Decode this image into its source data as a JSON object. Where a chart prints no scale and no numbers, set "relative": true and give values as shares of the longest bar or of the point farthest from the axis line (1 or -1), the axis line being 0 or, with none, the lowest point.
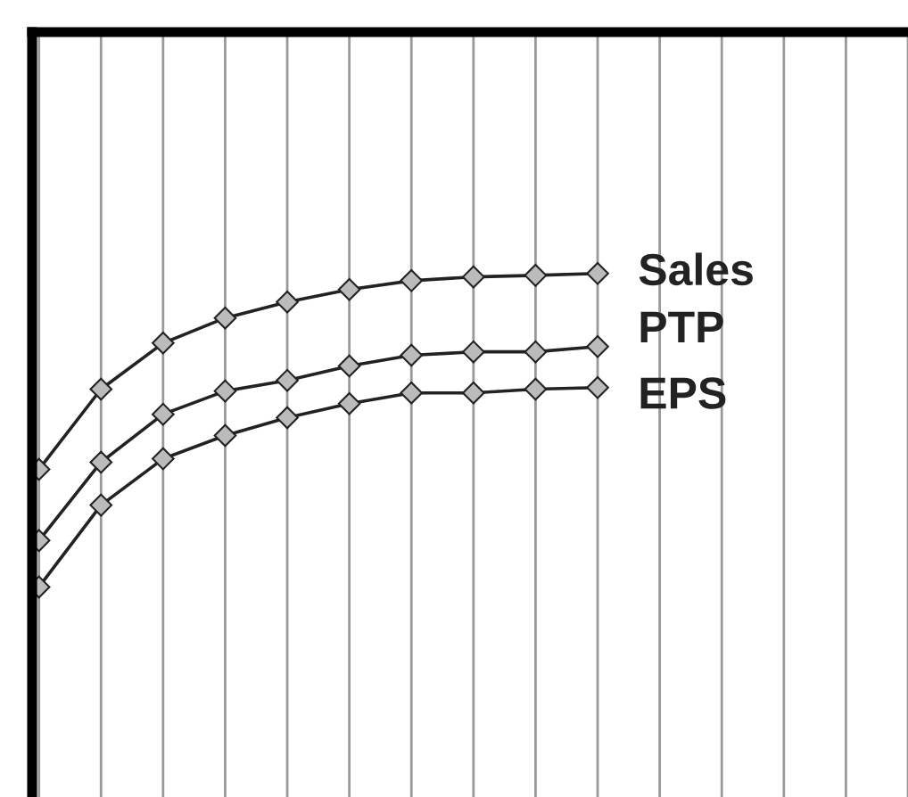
{
  "chart_data": {
    "type": "line",
    "relative": true,
    "categories": [
      null,
      null,
      null,
      null,
      null,
      null,
      null,
      null,
      null,
      null
    ],
    "series": [
      {
        "name": "Sales",
        "color": "#222222",
        "values": [
          0.375,
          0.631,
          0.778,
          0.858,
          0.909,
          0.949,
          0.977,
          0.989,
          0.994,
          1
        ]
      },
      {
        "name": "PTP",
        "color": "#222222",
        "values": [
          0.148,
          0.398,
          0.551,
          0.625,
          0.659,
          0.705,
          0.739,
          0.75,
          0.75,
          0.767
        ]
      },
      {
        "name": "EPS",
        "color": "#222222",
        "values": [
          0,
          0.261,
          0.409,
          0.483,
          0.54,
          0.585,
          0.619,
          0.619,
          0.631,
          0.636
        ]
      }
    ],
    "marker": "diamond",
    "line_style": "solid",
    "grid": "x",
    "legend": false
  }
}
